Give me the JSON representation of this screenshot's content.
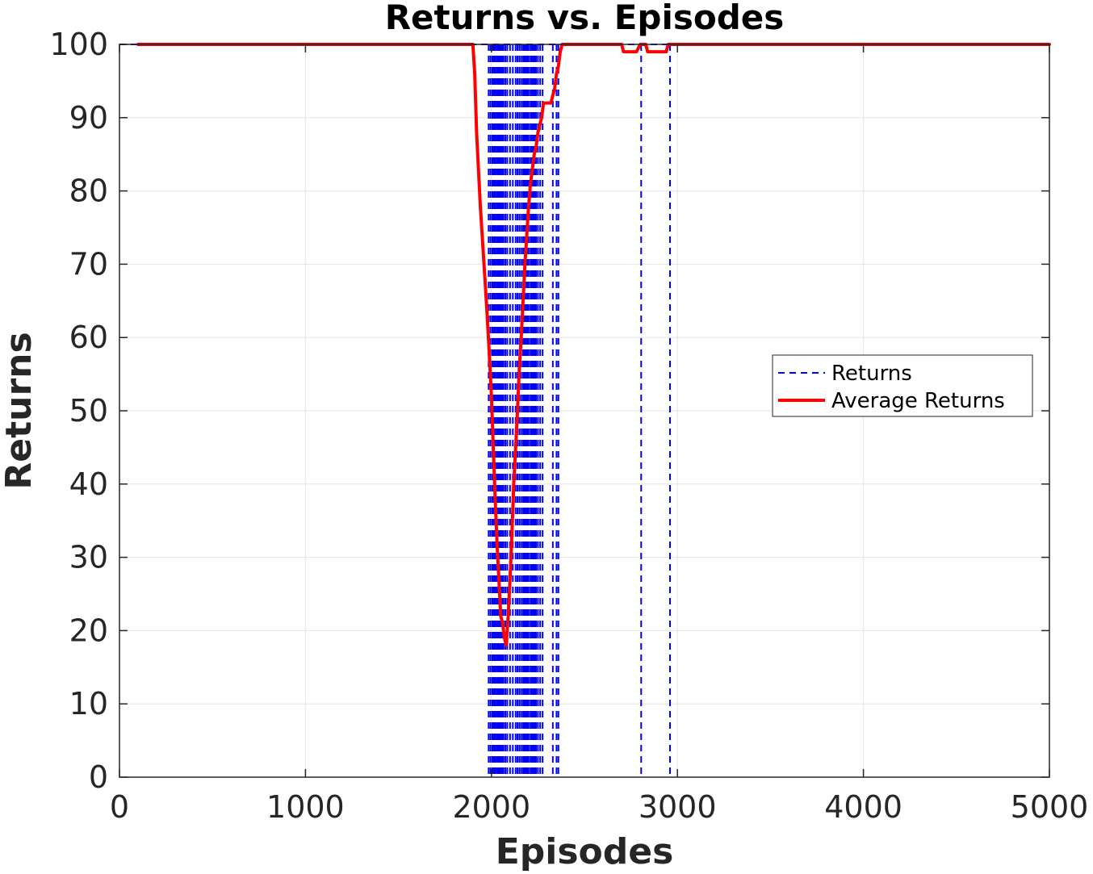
{
  "chart_data": {
    "type": "line",
    "title": "Returns vs. Episodes",
    "xlabel": "Episodes",
    "ylabel": "Returns",
    "xlim": [
      0,
      5000
    ],
    "ylim": [
      0,
      100
    ],
    "xticks": [
      "0",
      "1000",
      "2000",
      "3000",
      "4000",
      "5000"
    ],
    "yticks": [
      "0",
      "10",
      "20",
      "30",
      "40",
      "50",
      "60",
      "70",
      "80",
      "90",
      "100"
    ],
    "grid": true,
    "legend_position": "right",
    "legend": [
      "Returns",
      "Average Returns"
    ],
    "colors": {
      "returns": "#0000ff",
      "average": "#ff0000",
      "grid": "#e5e5e5",
      "axis": "#262626"
    },
    "series": [
      {
        "name": "Returns",
        "style": "dashed",
        "baseline": 100,
        "drops_to_zero_at_episodes": [
          1985,
          1995,
          2005,
          2012,
          2020,
          2028,
          2035,
          2042,
          2050,
          2058,
          2065,
          2075,
          2085,
          2100,
          2115,
          2130,
          2140,
          2150,
          2160,
          2170,
          2178,
          2185,
          2192,
          2200,
          2210,
          2218,
          2225,
          2233,
          2240,
          2250,
          2262,
          2275,
          2330,
          2350,
          2360,
          2805,
          2960
        ],
        "x_range": [
          0,
          5000
        ]
      },
      {
        "name": "Average Returns",
        "style": "solid",
        "x": [
          100,
          1900,
          1910,
          1920,
          1940,
          1960,
          1975,
          1990,
          2000,
          2010,
          2020,
          2030,
          2040,
          2050,
          2060,
          2070,
          2080,
          2090,
          2100,
          2110,
          2120,
          2130,
          2140,
          2150,
          2160,
          2170,
          2180,
          2190,
          2200,
          2210,
          2220,
          2230,
          2240,
          2250,
          2260,
          2270,
          2280,
          2300,
          2320,
          2340,
          2350,
          2360,
          2370,
          2380,
          2700,
          2710,
          2780,
          2800,
          2830,
          2840,
          2850,
          2860,
          2880,
          2940,
          2950,
          5000
        ],
        "y": [
          100,
          100,
          96,
          88,
          78,
          70,
          64,
          57,
          52,
          45,
          38,
          32,
          27,
          22,
          21,
          19,
          18,
          22,
          27,
          33,
          40,
          45,
          50,
          56,
          60,
          65,
          70,
          74,
          78,
          81,
          83,
          85,
          86,
          88,
          89,
          90,
          92,
          92,
          92,
          94,
          96,
          97,
          99,
          100,
          100,
          99,
          99,
          100,
          100,
          99,
          99,
          99,
          99,
          99,
          100,
          100
        ]
      }
    ]
  }
}
